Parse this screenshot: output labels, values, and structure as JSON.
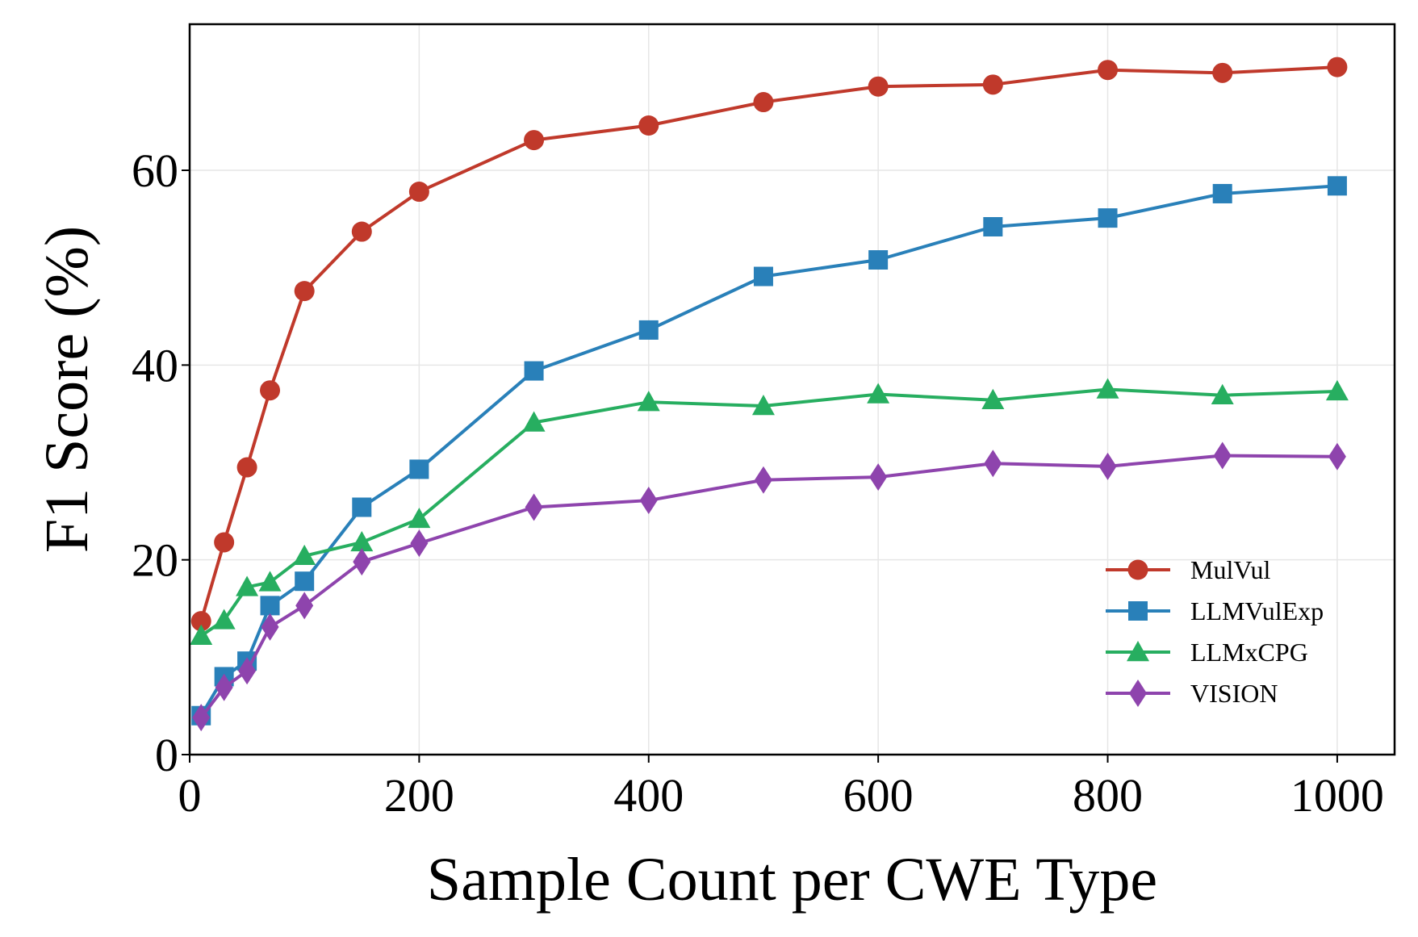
{
  "chart_data": {
    "type": "line",
    "xlabel": "Sample Count per CWE Type",
    "ylabel": "F1 Score (%)",
    "xlim": [
      0,
      1050
    ],
    "ylim": [
      0,
      75
    ],
    "xticks": [
      0,
      200,
      400,
      600,
      800,
      1000
    ],
    "yticks": [
      0,
      20,
      40,
      60
    ],
    "grid": true,
    "legend_position": "lower-right",
    "x": [
      10,
      30,
      50,
      70,
      100,
      150,
      200,
      300,
      400,
      500,
      600,
      700,
      800,
      900,
      1000
    ],
    "series": [
      {
        "name": "MulVul",
        "color": "#c0392b",
        "marker": "circle",
        "values": [
          13.7,
          21.8,
          29.5,
          37.4,
          47.6,
          53.7,
          57.8,
          63.1,
          64.6,
          67.0,
          68.6,
          68.8,
          70.3,
          70.0,
          70.6
        ]
      },
      {
        "name": "LLMVulExp",
        "color": "#2980b9",
        "marker": "square",
        "values": [
          4.0,
          8.0,
          9.6,
          15.3,
          17.8,
          25.4,
          29.3,
          39.4,
          43.6,
          49.1,
          50.8,
          54.2,
          55.1,
          57.6,
          58.4
        ]
      },
      {
        "name": "LLMxCPG",
        "color": "#27ae60",
        "marker": "triangle",
        "values": [
          12.2,
          13.8,
          17.2,
          17.7,
          20.4,
          21.8,
          24.2,
          34.1,
          36.2,
          35.8,
          37.0,
          36.4,
          37.5,
          36.9,
          37.3
        ]
      },
      {
        "name": "VISION",
        "color": "#8e44ad",
        "marker": "diamond",
        "values": [
          3.8,
          6.9,
          8.6,
          13.1,
          15.3,
          19.8,
          21.7,
          25.4,
          26.1,
          28.2,
          28.5,
          29.9,
          29.6,
          30.7,
          30.6
        ]
      }
    ]
  }
}
